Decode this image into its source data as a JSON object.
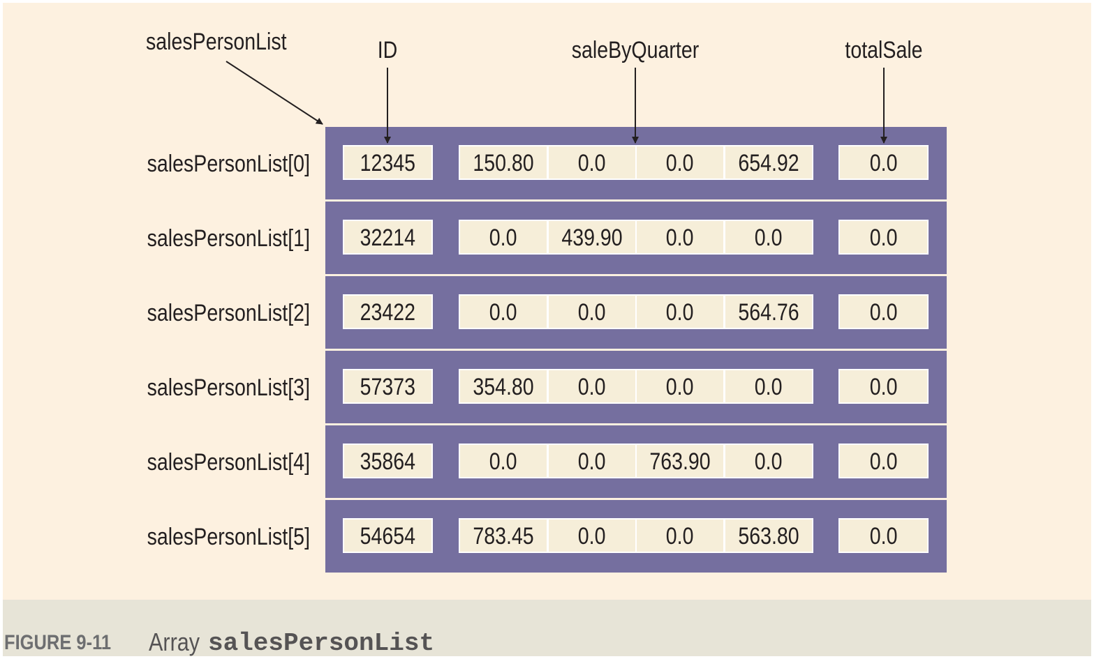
{
  "labels": {
    "array_name": "salesPersonList",
    "id_field": "ID",
    "quarter_field": "saleByQuarter",
    "total_field": "totalSale"
  },
  "rows": [
    {
      "index_label": "salesPersonList[0]",
      "id": "12345",
      "quarters": [
        "150.80",
        "0.0",
        "0.0",
        "654.92"
      ],
      "total": "0.0"
    },
    {
      "index_label": "salesPersonList[1]",
      "id": "32214",
      "quarters": [
        "0.0",
        "439.90",
        "0.0",
        "0.0"
      ],
      "total": "0.0"
    },
    {
      "index_label": "salesPersonList[2]",
      "id": "23422",
      "quarters": [
        "0.0",
        "0.0",
        "0.0",
        "564.76"
      ],
      "total": "0.0"
    },
    {
      "index_label": "salesPersonList[3]",
      "id": "57373",
      "quarters": [
        "354.80",
        "0.0",
        "0.0",
        "0.0"
      ],
      "total": "0.0"
    },
    {
      "index_label": "salesPersonList[4]",
      "id": "35864",
      "quarters": [
        "0.0",
        "0.0",
        "763.90",
        "0.0"
      ],
      "total": "0.0"
    },
    {
      "index_label": "salesPersonList[5]",
      "id": "54654",
      "quarters": [
        "783.45",
        "0.0",
        "0.0",
        "563.80"
      ],
      "total": "0.0"
    }
  ],
  "caption": {
    "number": "FIGURE 9-11",
    "text": "Array",
    "code": "salesPersonList"
  },
  "colors": {
    "background": "#fdf1e0",
    "record_band": "#756f9f",
    "cell_fill": "#f6eed9",
    "caption_bar": "#e7e4d7"
  }
}
